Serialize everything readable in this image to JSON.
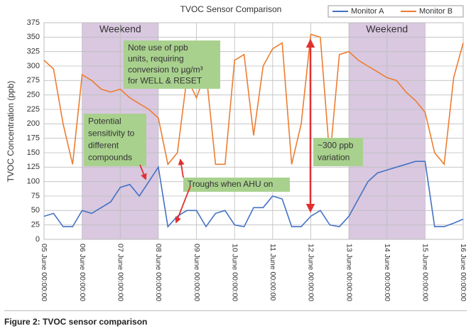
{
  "chart_data": {
    "type": "line",
    "title": "TVOC Sensor Comparison",
    "y_label": "TVOC Concentration (ppb)",
    "caption": "Figure 2: TVOC sensor comparison",
    "legend": "top-right",
    "grid": true,
    "xlim": [
      "05 June 00:00:00",
      "16 June 00:00:00"
    ],
    "xticks": [
      "05 June 00:00:00",
      "06 June 00:00:00",
      "07 June 00:00:00",
      "08 June 00:00:00",
      "09 June 00:00:00",
      "10 June 00:00:00",
      "11 June 00:00:00",
      "12 June 00:00:00",
      "13 June 00:00:00",
      "14 June 00:00:00",
      "15 June 00:00:00",
      "16 June 00:00:00"
    ],
    "ylim": [
      0,
      375
    ],
    "yticks": [
      0,
      25,
      50,
      75,
      100,
      125,
      150,
      175,
      200,
      225,
      250,
      275,
      300,
      325,
      350,
      375
    ],
    "shaded": [
      {
        "label": "Weekend",
        "from": "06 June 00:00:00",
        "to": "08 June 00:00:00",
        "color": "#d9c8e0"
      },
      {
        "label": "Weekend",
        "from": "13 June 00:00:00",
        "to": "15 June 00:00:00",
        "color": "#d9c8e0"
      }
    ],
    "annotations": [
      {
        "lines": [
          "Note use of ppb",
          "units, requiring",
          "conversion to µg/m³",
          "for WELL & RESET"
        ]
      },
      {
        "lines": [
          "Potential",
          "sensitivity to",
          "different",
          "compounds"
        ]
      },
      {
        "lines": [
          "Troughs when AHU on"
        ]
      },
      {
        "lines": [
          "~300 ppb",
          "variation"
        ]
      }
    ],
    "x": [
      "05 June 00:00:00",
      "05 June 06:00:00",
      "05 June 12:00:00",
      "05 June 18:00:00",
      "06 June 00:00:00",
      "06 June 06:00:00",
      "06 June 12:00:00",
      "06 June 18:00:00",
      "07 June 00:00:00",
      "07 June 06:00:00",
      "07 June 12:00:00",
      "07 June 18:00:00",
      "08 June 00:00:00",
      "08 June 06:00:00",
      "08 June 12:00:00",
      "08 June 18:00:00",
      "09 June 00:00:00",
      "09 June 06:00:00",
      "09 June 12:00:00",
      "09 June 18:00:00",
      "10 June 00:00:00",
      "10 June 06:00:00",
      "10 June 12:00:00",
      "10 June 18:00:00",
      "11 June 00:00:00",
      "11 June 06:00:00",
      "11 June 12:00:00",
      "11 June 18:00:00",
      "12 June 00:00:00",
      "12 June 06:00:00",
      "12 June 12:00:00",
      "12 June 18:00:00",
      "13 June 00:00:00",
      "13 June 06:00:00",
      "13 June 12:00:00",
      "13 June 18:00:00",
      "14 June 00:00:00",
      "14 June 06:00:00",
      "14 June 12:00:00",
      "14 June 18:00:00",
      "15 June 00:00:00",
      "15 June 06:00:00",
      "15 June 12:00:00",
      "15 June 18:00:00",
      "16 June 00:00:00"
    ],
    "series": [
      {
        "name": "Monitor A",
        "color": "#4472c4",
        "values": [
          40,
          45,
          22,
          22,
          50,
          45,
          55,
          65,
          90,
          95,
          75,
          100,
          125,
          22,
          40,
          50,
          50,
          22,
          45,
          50,
          25,
          22,
          55,
          55,
          75,
          70,
          22,
          22,
          40,
          50,
          25,
          22,
          40,
          70,
          100,
          115,
          120,
          125,
          130,
          135,
          135,
          22,
          22,
          28,
          35
        ]
      },
      {
        "name": "Monitor B",
        "color": "#ed7d31",
        "values": [
          310,
          295,
          200,
          130,
          285,
          275,
          260,
          255,
          260,
          245,
          235,
          225,
          210,
          130,
          150,
          280,
          245,
          290,
          130,
          130,
          310,
          320,
          180,
          300,
          330,
          340,
          130,
          200,
          355,
          350,
          140,
          320,
          325,
          310,
          300,
          290,
          280,
          275,
          255,
          240,
          220,
          150,
          130,
          280,
          340
        ]
      }
    ]
  }
}
